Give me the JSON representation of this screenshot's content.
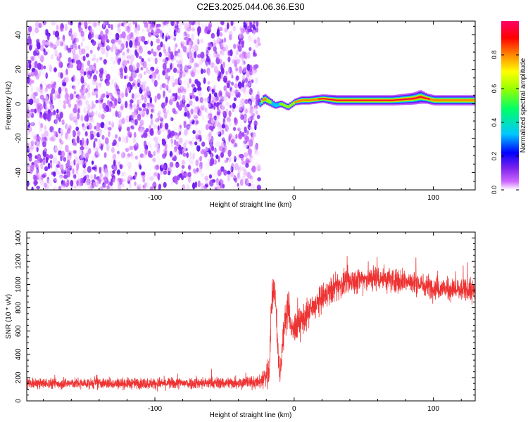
{
  "title": "C2E3.2025.044.06.36.E30",
  "chart_data": [
    {
      "type": "heatmap",
      "xlabel": "Height of straight line (km)",
      "ylabel": "Frequency (Hz)",
      "xlim": [
        -192,
        130
      ],
      "ylim": [
        -50,
        48
      ],
      "xticks": [
        -100,
        0,
        100
      ],
      "yticks": [
        -40,
        -20,
        0,
        20,
        40
      ],
      "grid": false,
      "colorbar": {
        "label": "Normalized spectral amplitude",
        "range": [
          0,
          1
        ],
        "ticks": [
          0.0,
          0.2,
          0.4,
          0.6,
          0.8
        ],
        "tick_labels": [
          "0.0",
          "0.2",
          "0.4",
          "0.6",
          "0.8"
        ],
        "colormap": [
          "#ffffff",
          "#cc66ff",
          "#7b22ee",
          "#0000ff",
          "#00c8ff",
          "#00ff66",
          "#99ff00",
          "#ffff00",
          "#ff8800",
          "#ff0000",
          "#ff0066"
        ]
      },
      "noise_region": {
        "x": [
          -192,
          -25
        ],
        "amplitude_range": [
          0.0,
          0.2
        ]
      },
      "signal_ridge": {
        "x": [
          -25,
          -22,
          -18,
          -14,
          -10,
          -5,
          0,
          5,
          10,
          20,
          30,
          50,
          70,
          85,
          90,
          95,
          100,
          110,
          130
        ],
        "freq": [
          0,
          3,
          1,
          -1,
          0,
          -2,
          1,
          2,
          2,
          3,
          2,
          2,
          2,
          3,
          4,
          3,
          2,
          2,
          2
        ],
        "bandwidth_hz": [
          4,
          6,
          5,
          4,
          4,
          4,
          4,
          5,
          5,
          5,
          6,
          6,
          6,
          7,
          8,
          6,
          6,
          6,
          6
        ],
        "peak_amplitude": [
          0.5,
          0.9,
          0.6,
          0.5,
          0.6,
          0.6,
          0.8,
          0.85,
          0.9,
          0.95,
          0.95,
          0.95,
          0.95,
          0.95,
          0.95,
          0.95,
          0.9,
          0.9,
          0.9
        ]
      }
    },
    {
      "type": "line",
      "xlabel": "Height of straight line (km)",
      "ylabel": "SNR (10 * v/v)",
      "xlim": [
        -192,
        130
      ],
      "ylim": [
        0,
        1450
      ],
      "xticks": [
        -100,
        0,
        100
      ],
      "yticks": [
        0,
        200,
        400,
        600,
        800,
        1000,
        1200,
        1400
      ],
      "grid": false,
      "series": [
        {
          "color": "#ee3333",
          "x": [
            -192,
            -150,
            -100,
            -50,
            -25,
            -18,
            -16,
            -14,
            -12,
            -10,
            -8,
            -6,
            -4,
            -2,
            0,
            5,
            10,
            20,
            30,
            40,
            50,
            60,
            70,
            80,
            90,
            100,
            110,
            120,
            130
          ],
          "mean": [
            150,
            150,
            150,
            155,
            160,
            240,
            900,
            1000,
            500,
            200,
            560,
            700,
            820,
            600,
            620,
            680,
            750,
            880,
            980,
            1030,
            1050,
            1060,
            1040,
            1030,
            1000,
            980,
            960,
            950,
            940
          ],
          "spread": [
            70,
            70,
            75,
            80,
            80,
            250,
            250,
            200,
            200,
            150,
            220,
            220,
            200,
            200,
            200,
            200,
            200,
            180,
            180,
            170,
            170,
            170,
            170,
            160,
            150,
            150,
            150,
            150,
            150
          ]
        }
      ]
    }
  ]
}
